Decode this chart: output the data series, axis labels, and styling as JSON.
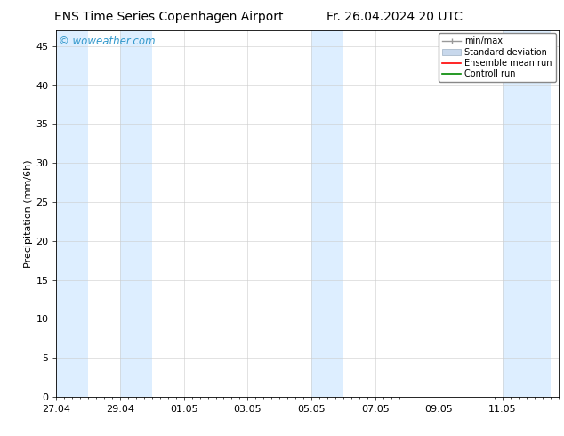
{
  "title": "ENS Time Series Copenhagen Airport",
  "title_right": "Fr. 26.04.2024 20 UTC",
  "ylabel": "Precipitation (mm/6h)",
  "watermark": "© woweather.com",
  "watermark_color": "#3399cc",
  "background_color": "#ffffff",
  "plot_bg_color": "#ffffff",
  "ylim": [
    0,
    47
  ],
  "yticks": [
    0,
    5,
    10,
    15,
    20,
    25,
    30,
    35,
    40,
    45
  ],
  "xlim": [
    0,
    15.5
  ],
  "xtick_labels": [
    "27.04",
    "29.04",
    "01.05",
    "03.05",
    "05.05",
    "07.05",
    "09.05",
    "11.05"
  ],
  "xtick_positions": [
    0,
    2,
    4,
    6,
    8,
    10,
    12,
    14
  ],
  "shaded_bands": [
    [
      0,
      1
    ],
    [
      2,
      3
    ],
    [
      8,
      9
    ],
    [
      14,
      15.5
    ]
  ],
  "shade_color": "#ddeeff",
  "legend_items": [
    {
      "label": "min/max",
      "color": "#aaaaaa",
      "type": "errorbar"
    },
    {
      "label": "Standard deviation",
      "color": "#c8d8ec",
      "type": "fill"
    },
    {
      "label": "Ensemble mean run",
      "color": "#ff0000",
      "type": "line"
    },
    {
      "label": "Controll run",
      "color": "#008800",
      "type": "line"
    }
  ],
  "font_size": 8,
  "title_font_size": 10,
  "ylabel_font_size": 8,
  "tick_font_size": 8
}
